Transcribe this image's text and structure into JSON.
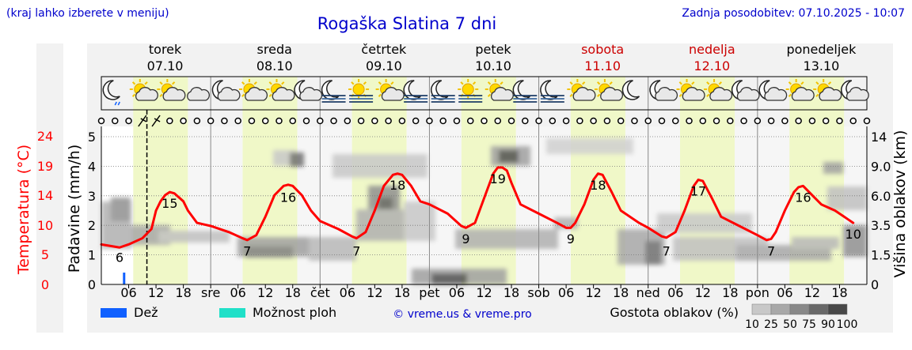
{
  "header": {
    "left_note": "(kraj lahko izberete v meniju)",
    "title": "Rogaška Slatina 7 dni",
    "updated": "Zadnja posodobitev: 07.10.2025 - 10:07"
  },
  "chart_data": {
    "type": "line",
    "title": "Rogaška Slatina 7 dni",
    "days": [
      {
        "name": "torek",
        "date": "07.10",
        "weekend": false
      },
      {
        "name": "sreda",
        "date": "08.10",
        "weekend": false
      },
      {
        "name": "četrtek",
        "date": "09.10",
        "weekend": false
      },
      {
        "name": "petek",
        "date": "10.10",
        "weekend": false
      },
      {
        "name": "sobota",
        "date": "11.10",
        "weekend": true
      },
      {
        "name": "nedelja",
        "date": "12.10",
        "weekend": true
      },
      {
        "name": "ponedeljek",
        "date": "13.10",
        "weekend": false
      }
    ],
    "x_tick_labels": [
      "06",
      "12",
      "18",
      "sre",
      "06",
      "12",
      "18",
      "čet",
      "06",
      "12",
      "18",
      "pet",
      "06",
      "12",
      "18",
      "sob",
      "06",
      "12",
      "18",
      "ned",
      "06",
      "12",
      "18",
      "pon",
      "06",
      "12",
      "18"
    ],
    "x_hours_range": [
      0,
      168
    ],
    "now_hour": 10,
    "temperature": {
      "label": "Temperatura (°C)",
      "ticks": [
        0,
        5,
        10,
        14,
        19,
        24
      ],
      "range": [
        0,
        24
      ],
      "color": "#ff0000",
      "points": [
        [
          0,
          6.5
        ],
        [
          4,
          6
        ],
        [
          6,
          6.5
        ],
        [
          9,
          7.5
        ],
        [
          11,
          9
        ],
        [
          12,
          12
        ],
        [
          13,
          13.5
        ],
        [
          14,
          14.5
        ],
        [
          15,
          15
        ],
        [
          16,
          14.8
        ],
        [
          18,
          13.5
        ],
        [
          19,
          12
        ],
        [
          21,
          10
        ],
        [
          24,
          9.5
        ],
        [
          28,
          8.5
        ],
        [
          31,
          7.5
        ],
        [
          32,
          7.2
        ],
        [
          34,
          8
        ],
        [
          36,
          11
        ],
        [
          38,
          14.5
        ],
        [
          40,
          16
        ],
        [
          41,
          16.2
        ],
        [
          42,
          16
        ],
        [
          44,
          14.5
        ],
        [
          46,
          12
        ],
        [
          48,
          10.3
        ],
        [
          52,
          9
        ],
        [
          55,
          7.8
        ],
        [
          56,
          7.5
        ],
        [
          58,
          8.5
        ],
        [
          60,
          12
        ],
        [
          62,
          16
        ],
        [
          64,
          17.8
        ],
        [
          65,
          18
        ],
        [
          66,
          17.8
        ],
        [
          68,
          16
        ],
        [
          70,
          13.5
        ],
        [
          72,
          13
        ],
        [
          76,
          11.5
        ],
        [
          79,
          9.5
        ],
        [
          80,
          9.2
        ],
        [
          82,
          10
        ],
        [
          84,
          14
        ],
        [
          86,
          18
        ],
        [
          87,
          19
        ],
        [
          88,
          19
        ],
        [
          89,
          18.5
        ],
        [
          90,
          16.5
        ],
        [
          92,
          13
        ],
        [
          96,
          11.5
        ],
        [
          100,
          10
        ],
        [
          102,
          9.2
        ],
        [
          103,
          9.2
        ],
        [
          104,
          10
        ],
        [
          106,
          13
        ],
        [
          108,
          17
        ],
        [
          109,
          18
        ],
        [
          110,
          17.8
        ],
        [
          112,
          15
        ],
        [
          114,
          12
        ],
        [
          118,
          10
        ],
        [
          120,
          9.2
        ],
        [
          123,
          7.8
        ],
        [
          124,
          7.6
        ],
        [
          126,
          8.5
        ],
        [
          128,
          12
        ],
        [
          130,
          16
        ],
        [
          131,
          17
        ],
        [
          132,
          16.8
        ],
        [
          134,
          14
        ],
        [
          136,
          11
        ],
        [
          140,
          9.5
        ],
        [
          144,
          8
        ],
        [
          146,
          7.2
        ],
        [
          147,
          7.4
        ],
        [
          148,
          8.5
        ],
        [
          150,
          12
        ],
        [
          152,
          15
        ],
        [
          153,
          15.8
        ],
        [
          154,
          16
        ],
        [
          156,
          14.5
        ],
        [
          158,
          13
        ],
        [
          161,
          12
        ],
        [
          163,
          11
        ],
        [
          164,
          10.5
        ],
        [
          165,
          10
        ]
      ],
      "labels": [
        {
          "h": 4,
          "v": 6,
          "text": "6"
        },
        {
          "h": 15,
          "v": 15,
          "text": "15"
        },
        {
          "h": 32,
          "v": 7,
          "text": "7"
        },
        {
          "h": 41,
          "v": 16,
          "text": "16"
        },
        {
          "h": 56,
          "v": 7,
          "text": "7"
        },
        {
          "h": 65,
          "v": 18,
          "text": "18"
        },
        {
          "h": 80,
          "v": 9,
          "text": "9"
        },
        {
          "h": 87,
          "v": 19,
          "text": "19"
        },
        {
          "h": 103,
          "v": 9,
          "text": "9"
        },
        {
          "h": 109,
          "v": 18,
          "text": "18"
        },
        {
          "h": 124,
          "v": 7,
          "text": "7"
        },
        {
          "h": 131,
          "v": 17,
          "text": "17"
        },
        {
          "h": 147,
          "v": 7,
          "text": "7"
        },
        {
          "h": 154,
          "v": 16,
          "text": "16"
        },
        {
          "h": 165,
          "v": 10,
          "text": "10"
        }
      ]
    },
    "precipitation": {
      "label": "Padavine (mm/h)",
      "ticks": [
        0,
        1,
        2,
        3,
        4,
        5
      ],
      "range": [
        0,
        5
      ],
      "bars": [
        {
          "h": 5,
          "value": 0.4,
          "kind": "Dež"
        }
      ]
    },
    "cloud_height": {
      "label": "Višina oblakov (km)",
      "ticks": [
        "0",
        "1.5",
        "3.5",
        "6.0",
        "9.0",
        "14"
      ]
    },
    "legend": {
      "rain": {
        "label": "Dež",
        "color": "#1060ff"
      },
      "showers": {
        "label": "Možnost ploh",
        "color": "#20e0c8"
      },
      "credit": "© vreme.us & vreme.pro",
      "cloud_label": "Gostota oblakov (%)",
      "cloud_steps": [
        "10",
        "25",
        "50",
        "75",
        "90",
        "100"
      ]
    },
    "weather_icons": [
      "moon-rain",
      "sun-cloud",
      "sun-cloud",
      "cloud",
      "moon-cloud",
      "sun-cloud",
      "sun-cloud",
      "moon-cloud",
      "moon-fog",
      "sun-fog",
      "sun-cloud",
      "moon-fog",
      "moon-fog",
      "sun-fog",
      "sun-cloud",
      "moon-fog",
      "moon-fog",
      "sun-cloud",
      "sun-cloud",
      "moon",
      "moon-cloud",
      "sun-cloud",
      "sun-cloud",
      "moon-cloud",
      "moon-cloud",
      "sun-cloud",
      "sun-cloud",
      "moon-cloud"
    ],
    "wind_markers": "calm"
  }
}
